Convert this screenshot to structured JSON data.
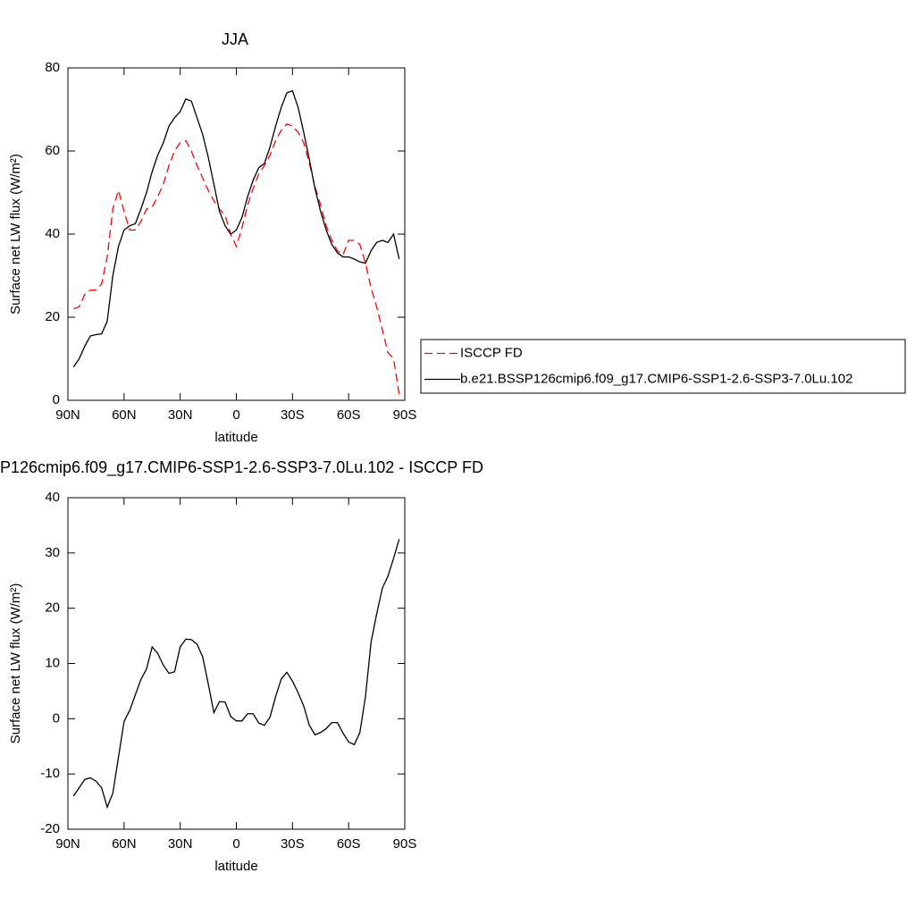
{
  "chart_data": [
    {
      "type": "line",
      "title": "JJA",
      "xlabel": "latitude",
      "ylabel": "Surface net LW flux (W/m²)",
      "x": [
        87,
        84,
        81,
        78,
        75,
        72,
        69,
        66,
        63,
        60,
        57,
        54,
        51,
        48,
        45,
        42,
        39,
        36,
        33,
        30,
        27,
        24,
        21,
        18,
        15,
        12,
        9,
        6,
        3,
        0,
        -3,
        -6,
        -9,
        -12,
        -15,
        -18,
        -21,
        -24,
        -27,
        -30,
        -33,
        -36,
        -39,
        -42,
        -45,
        -48,
        -51,
        -54,
        -57,
        -60,
        -63,
        -66,
        -69,
        -72,
        -75,
        -78,
        -81,
        -84,
        -87
      ],
      "series": [
        {
          "name": "ISCCP FD",
          "color": "#ff0000",
          "dash": true,
          "values": [
            22,
            22.5,
            25.5,
            26.5,
            26.5,
            28,
            34.5,
            46,
            50.5,
            45.5,
            41,
            41,
            43,
            46,
            46.5,
            49,
            52,
            56.5,
            60,
            62,
            62.5,
            60,
            56.5,
            53.5,
            50.5,
            48,
            46,
            44.5,
            40,
            37,
            41.5,
            47,
            51,
            54.5,
            56.5,
            59,
            62.5,
            65,
            66.5,
            66,
            64.5,
            62,
            57,
            51.5,
            47,
            42,
            38.5,
            36,
            35,
            38.5,
            38.5,
            37.5,
            33,
            27,
            22.5,
            17,
            11.5,
            10,
            1.5
          ]
        },
        {
          "name": "b.e21.BSSP126cmip6.f09_g17.CMIP6-SSP1-2.6-SSP3-7.0Lu.102",
          "color": "#000000",
          "dash": false,
          "values": [
            8,
            10,
            13,
            15.5,
            15.8,
            16,
            19,
            30,
            37,
            41,
            42,
            42.5,
            46,
            50,
            55,
            59,
            62,
            66,
            68,
            69.5,
            72.5,
            72,
            68,
            64,
            58.5,
            52,
            45.5,
            42,
            40,
            41,
            44,
            49,
            53,
            56,
            57,
            61,
            66,
            70.5,
            74,
            74.5,
            70.5,
            64.5,
            58,
            51,
            45.5,
            41,
            37.5,
            35.5,
            34.5,
            34.5,
            34,
            33.3,
            33,
            36,
            38,
            38.5,
            38,
            40,
            34
          ]
        }
      ],
      "xlim": [
        90,
        -90
      ],
      "xticks": [
        {
          "value": 90,
          "label": "90N"
        },
        {
          "value": 60,
          "label": "60N"
        },
        {
          "value": 30,
          "label": "30N"
        },
        0,
        {
          "value": -30,
          "label": "30S"
        },
        {
          "value": -60,
          "label": "60S"
        },
        {
          "value": -90,
          "label": "90S"
        }
      ],
      "ylim": [
        0,
        80
      ],
      "yticks": [
        0,
        20,
        40,
        60,
        80
      ],
      "legend": "right"
    },
    {
      "type": "line",
      "title": "P126cmip6.f09_g17.CMIP6-SSP1-2.6-SSP3-7.0Lu.102 - ISCCP FD",
      "xlabel": "latitude",
      "ylabel": "Surface net LW flux (W/m²)",
      "x": [
        87,
        84,
        81,
        78,
        75,
        72,
        69,
        66,
        63,
        60,
        57,
        54,
        51,
        48,
        45,
        42,
        39,
        36,
        33,
        30,
        27,
        24,
        21,
        18,
        15,
        12,
        9,
        6,
        3,
        0,
        -3,
        -6,
        -9,
        -12,
        -15,
        -18,
        -21,
        -24,
        -27,
        -30,
        -33,
        -36,
        -39,
        -42,
        -45,
        -48,
        -51,
        -54,
        -57,
        -60,
        -63,
        -66,
        -69,
        -72,
        -75,
        -78,
        -81,
        -84,
        -87
      ],
      "color": "#000000",
      "values": [
        -14,
        -12.5,
        -11,
        -10.7,
        -11.3,
        -12.5,
        -16,
        -13.5,
        -7,
        -0.5,
        1.5,
        4.3,
        7.1,
        9,
        13,
        11.8,
        9.7,
        8.2,
        8.5,
        13,
        14.4,
        14.3,
        13.5,
        11.2,
        6.3,
        1.1,
        3.1,
        3,
        0.4,
        -0.4,
        -0.4,
        0.9,
        0.9,
        -0.8,
        -1.2,
        0.3,
        4,
        7.2,
        8.4,
        6.8,
        4.7,
        2.3,
        -1.2,
        -2.9,
        -2.5,
        -1.8,
        -0.7,
        -0.7,
        -2.6,
        -4.2,
        -4.7,
        -2.5,
        4,
        13.9,
        19,
        23.6,
        25.8,
        29,
        32.5
      ],
      "xlim": [
        90,
        -90
      ],
      "xticks": [
        {
          "value": 90,
          "label": "90N"
        },
        {
          "value": 60,
          "label": "60N"
        },
        {
          "value": 30,
          "label": "30N"
        },
        0,
        {
          "value": -30,
          "label": "30S"
        },
        {
          "value": -60,
          "label": "60S"
        },
        {
          "value": -90,
          "label": "90S"
        }
      ],
      "ylim": [
        -20,
        40
      ],
      "yticks": [
        -20,
        -10,
        0,
        10,
        20,
        30,
        40
      ]
    }
  ]
}
